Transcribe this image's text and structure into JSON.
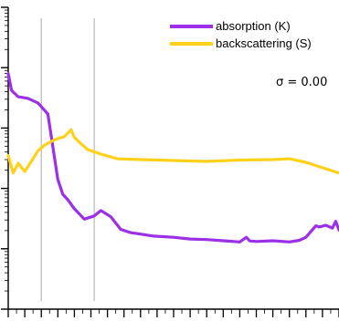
{
  "chart_data": {
    "type": "line",
    "title": "",
    "xlabel": "",
    "ylabel": "",
    "log_y": true,
    "xlim": [
      0,
      1
    ],
    "ylim": [
      0.1,
      10000
    ],
    "grid": false,
    "legend_position": "top-right",
    "annotation": "σ = 0.00",
    "vertical_lines_x": [
      0.1,
      0.26
    ],
    "series": [
      {
        "name": "absorption (K)",
        "color": "#9b30e6",
        "x": [
          0.0,
          0.01,
          0.03,
          0.06,
          0.09,
          0.12,
          0.15,
          0.165,
          0.18,
          0.2,
          0.23,
          0.26,
          0.28,
          0.31,
          0.34,
          0.37,
          0.4,
          0.44,
          0.5,
          0.55,
          0.6,
          0.65,
          0.7,
          0.72,
          0.73,
          0.75,
          0.8,
          0.85,
          0.88,
          0.9,
          0.93,
          0.94,
          0.96,
          0.98,
          0.99,
          1.0
        ],
        "y": [
          800,
          420,
          330,
          310,
          260,
          170,
          14,
          8,
          6.5,
          4.6,
          3.1,
          3.5,
          4.3,
          3.4,
          2.1,
          1.85,
          1.75,
          1.62,
          1.55,
          1.45,
          1.42,
          1.36,
          1.3,
          1.55,
          1.35,
          1.32,
          1.36,
          1.3,
          1.38,
          1.55,
          2.4,
          2.3,
          2.45,
          2.2,
          2.85,
          2.05
        ]
      },
      {
        "name": "backscattering (S)",
        "color": "#ffd11a",
        "x": [
          0.0,
          0.015,
          0.03,
          0.05,
          0.07,
          0.09,
          0.11,
          0.13,
          0.15,
          0.17,
          0.19,
          0.2,
          0.22,
          0.24,
          0.28,
          0.33,
          0.4,
          0.5,
          0.6,
          0.7,
          0.8,
          0.85,
          0.9,
          0.95,
          1.0
        ],
        "y": [
          35,
          18,
          26,
          19,
          28,
          42,
          52,
          60,
          67,
          72,
          94,
          70,
          55,
          44,
          37,
          31,
          30,
          29,
          28,
          29.5,
          30,
          31,
          27,
          22,
          18
        ]
      }
    ]
  }
}
